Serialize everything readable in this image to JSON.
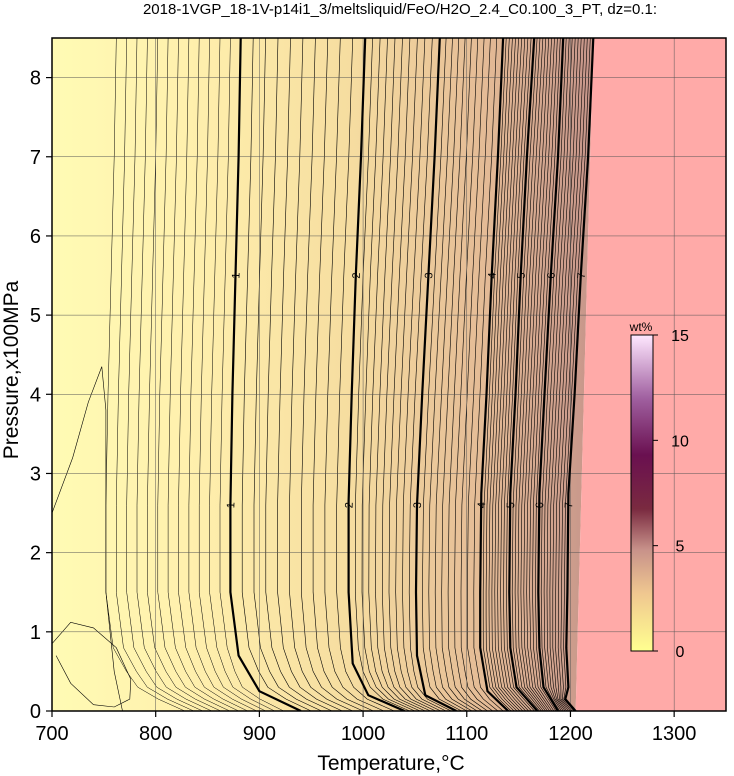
{
  "chart_data": {
    "type": "contour",
    "title": "2018-1VGP_18-1V-p14i1_3/meltsliquid/FeO/H2O_2.4_C0.100_3_PT, dz=0.1:",
    "xlabel": "Temperature,°C",
    "ylabel": "Pressure,x100MPa",
    "xlim": [
      700,
      1350
    ],
    "ylim": [
      0,
      8.5
    ],
    "xticks": [
      700,
      800,
      900,
      1000,
      1100,
      1200,
      1300
    ],
    "yticks": [
      0,
      1,
      2,
      3,
      4,
      5,
      6,
      7,
      8
    ],
    "grid": true,
    "contour_interval": 0.1,
    "major_contours": [
      {
        "level": "1",
        "points": [
          [
            940,
            0
          ],
          [
            900,
            0.25
          ],
          [
            880,
            0.7
          ],
          [
            872,
            1.5
          ],
          [
            872,
            2.6
          ],
          [
            874,
            4
          ],
          [
            877,
            5.5
          ],
          [
            880,
            7
          ],
          [
            882,
            8.5
          ]
        ]
      },
      {
        "level": "2",
        "points": [
          [
            1040,
            0
          ],
          [
            1005,
            0.2
          ],
          [
            990,
            0.6
          ],
          [
            986,
            1.5
          ],
          [
            986,
            2.65
          ],
          [
            989,
            4
          ],
          [
            993,
            5.5
          ],
          [
            998,
            7
          ],
          [
            1002,
            8.5
          ]
        ]
      },
      {
        "level": "3",
        "points": [
          [
            1090,
            0
          ],
          [
            1060,
            0.2
          ],
          [
            1052,
            0.7
          ],
          [
            1051,
            1.5
          ],
          [
            1052,
            2.6
          ],
          [
            1057,
            4
          ],
          [
            1063,
            5.5
          ],
          [
            1069,
            7
          ],
          [
            1074,
            8.5
          ]
        ]
      },
      {
        "level": "4",
        "points": [
          [
            1140,
            0
          ],
          [
            1120,
            0.25
          ],
          [
            1113,
            0.8
          ],
          [
            1113,
            1.5
          ],
          [
            1114,
            2.75
          ],
          [
            1119,
            4
          ],
          [
            1124,
            5.5
          ],
          [
            1130,
            7
          ],
          [
            1135,
            8.5
          ]
        ]
      },
      {
        "level": "5",
        "points": [
          [
            1168,
            0
          ],
          [
            1148,
            0.3
          ],
          [
            1142,
            0.8
          ],
          [
            1141,
            1.5
          ],
          [
            1142,
            2.75
          ],
          [
            1147,
            4
          ],
          [
            1152,
            5.5
          ],
          [
            1158,
            7
          ],
          [
            1165,
            8.5
          ]
        ]
      },
      {
        "level": "6",
        "points": [
          [
            1188,
            0
          ],
          [
            1174,
            0.3
          ],
          [
            1170,
            0.8
          ],
          [
            1169,
            1.5
          ],
          [
            1170,
            2.75
          ],
          [
            1175,
            4
          ],
          [
            1181,
            5.5
          ],
          [
            1188,
            7
          ],
          [
            1193,
            8.5
          ]
        ]
      },
      {
        "level": "7",
        "points": [
          [
            1205,
            0
          ],
          [
            1195,
            0.15
          ],
          [
            1198,
            0.3
          ],
          [
            1196,
            0.8
          ],
          [
            1197,
            1.5
          ],
          [
            1198,
            2.75
          ],
          [
            1204,
            4
          ],
          [
            1210,
            5.5
          ],
          [
            1217,
            7
          ],
          [
            1222,
            8.5
          ]
        ]
      }
    ],
    "liquidus_boundary": [
      [
        1205,
        0
      ],
      [
        1222,
        8.5
      ]
    ],
    "colorbar": {
      "unit": "wt%",
      "range": [
        0,
        15
      ],
      "ticks": [
        0,
        5,
        10,
        15
      ],
      "colors": [
        "#ffffa0",
        "#f5c890",
        "#c49a8a",
        "#7a2a40",
        "#6a1050",
        "#a060a0",
        "#ffe0ff"
      ]
    },
    "fill_colors": {
      "low": "#fffbb4",
      "mid": "#f6dda0",
      "high": "#cc9d8e",
      "above_liquidus": "#ffaaa8"
    }
  }
}
